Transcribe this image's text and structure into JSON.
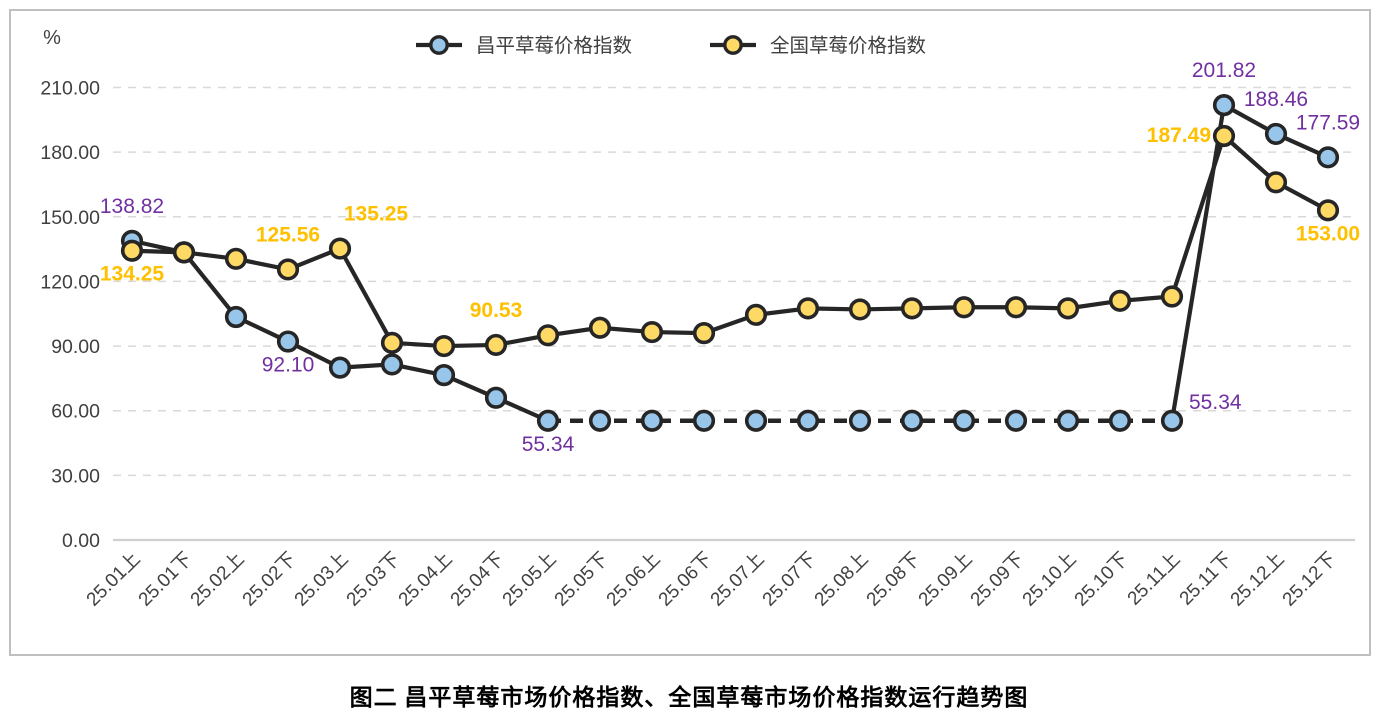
{
  "page": {
    "caption": "图二 昌平草莓市场价格指数、全国草莓市场价格指数运行趋势图"
  },
  "chart_data": {
    "type": "line",
    "unit_label": "%",
    "categories": [
      "25.01上",
      "25.01下",
      "25.02上",
      "25.02下",
      "25.03上",
      "25.03下",
      "25.04上",
      "25.04下",
      "25.05上",
      "25.05下",
      "25.06上",
      "25.06下",
      "25.07上",
      "25.07下",
      "25.08上",
      "25.08下",
      "25.09上",
      "25.09下",
      "25.10上",
      "25.10下",
      "25.11上",
      "25.11下",
      "25.12上",
      "25.12下"
    ],
    "y_axis": {
      "min": 0,
      "max": 210,
      "step": 30,
      "decimals": 2
    },
    "grid": "dashed-horizontal",
    "legend_position": "top-center",
    "colors": {
      "grid": "#D9D9D9",
      "baseline": "#D0D0D0",
      "axis_text": "#404040",
      "frame_border": "#BFBFBF",
      "line": "#262626"
    },
    "series": [
      {
        "name": "昌平草莓价格指数",
        "marker_color": "#98C6EB",
        "line_color": "#262626",
        "label_color": "#7030A0",
        "label_bold": false,
        "values": [
          138.82,
          133.5,
          103.5,
          92.1,
          80,
          81.5,
          76.5,
          66,
          55.34,
          55.34,
          55.34,
          55.34,
          55.34,
          55.34,
          55.34,
          55.34,
          55.34,
          55.34,
          55.34,
          55.34,
          55.34,
          201.82,
          188.46,
          177.59
        ],
        "dash_segments": [
          [
            8,
            20
          ]
        ],
        "point_labels": [
          {
            "index": 0,
            "text": "138.82",
            "position": "above"
          },
          {
            "index": 3,
            "text": "92.10",
            "position": "below"
          },
          {
            "index": 8,
            "text": "55.34",
            "position": "below"
          },
          {
            "index": 20,
            "text": "55.34",
            "position": "upper-right"
          },
          {
            "index": 21,
            "text": "201.82",
            "position": "above"
          },
          {
            "index": 22,
            "text": "188.46",
            "position": "above"
          },
          {
            "index": 23,
            "text": "177.59",
            "position": "above"
          }
        ]
      },
      {
        "name": "全国草莓价格指数",
        "marker_color": "#FFD966",
        "line_color": "#262626",
        "label_color": "#FFC000",
        "label_bold": true,
        "values": [
          134.25,
          133.5,
          130.5,
          125.56,
          135.25,
          91.5,
          90,
          90.53,
          95,
          98.5,
          96.5,
          96,
          104.5,
          107.5,
          107,
          107.5,
          108,
          108,
          107.5,
          111,
          113,
          187.49,
          166,
          153.0
        ],
        "dash_segments": [],
        "point_labels": [
          {
            "index": 0,
            "text": "134.25",
            "position": "below"
          },
          {
            "index": 3,
            "text": "125.56",
            "position": "above"
          },
          {
            "index": 4,
            "text": "135.25",
            "position": "above-right"
          },
          {
            "index": 7,
            "text": "90.53",
            "position": "above"
          },
          {
            "index": 21,
            "text": "187.49",
            "position": "left"
          },
          {
            "index": 23,
            "text": "153.00",
            "position": "below"
          }
        ]
      }
    ]
  }
}
